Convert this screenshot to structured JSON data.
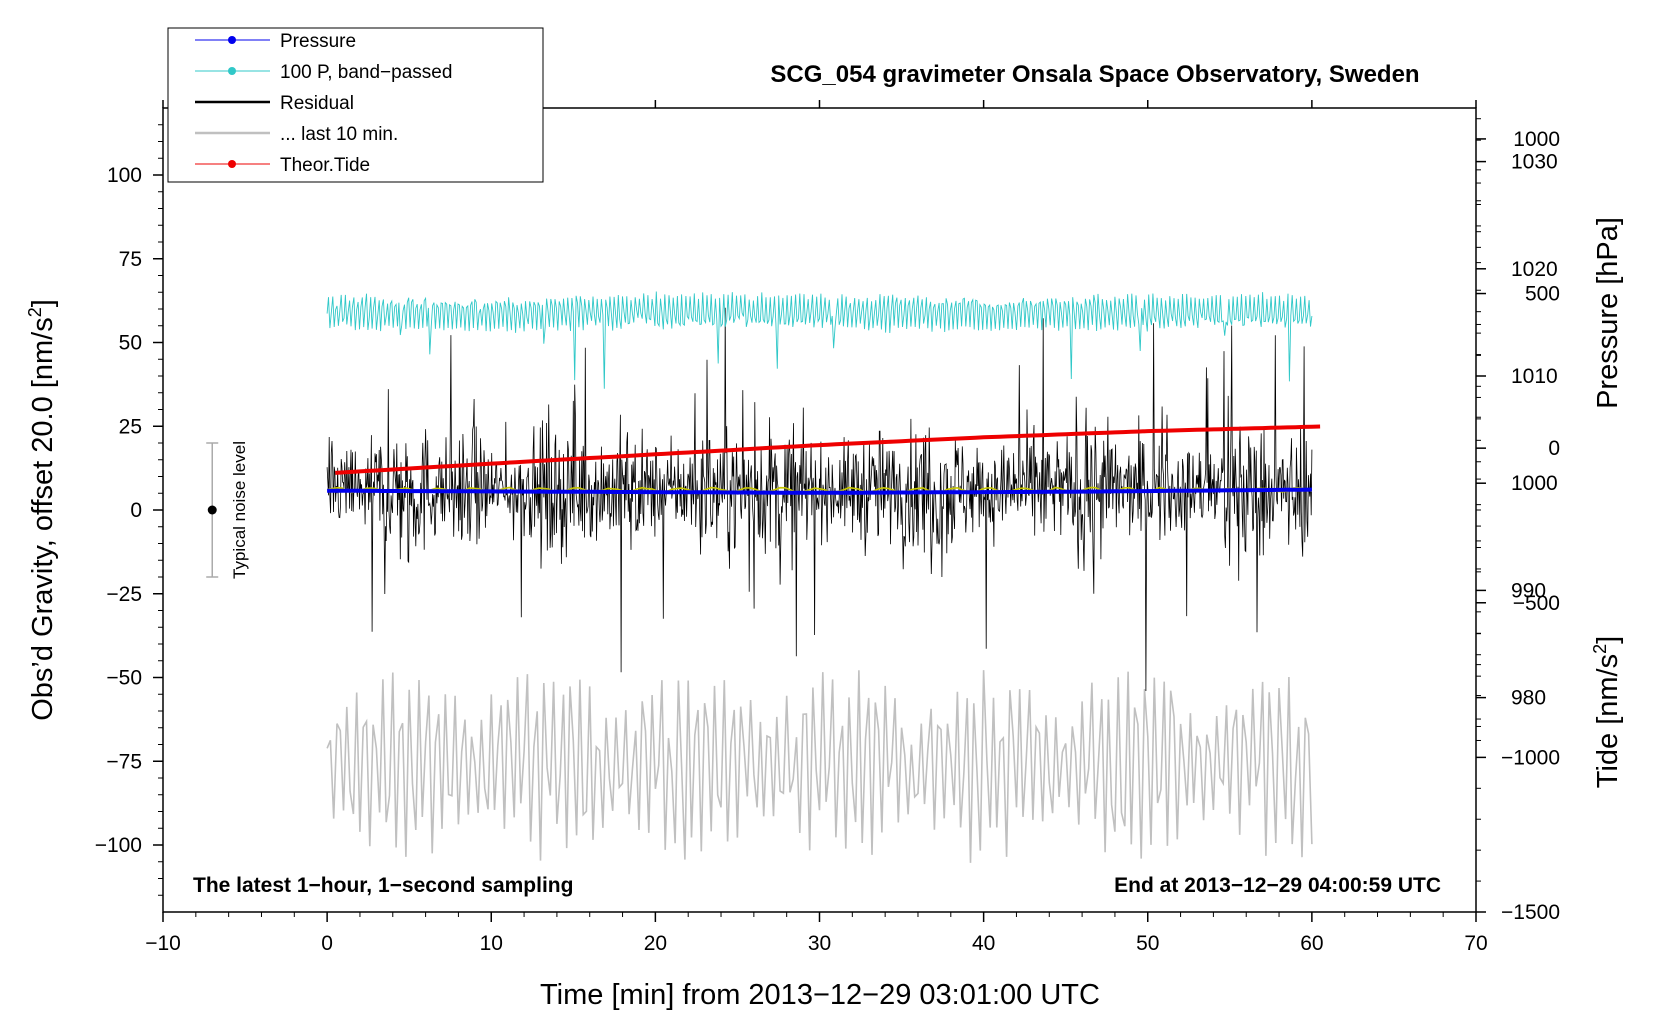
{
  "chart_data": {
    "type": "line",
    "title": "SCG_054 gravimeter Onsala Space Observatory, Sweden",
    "xlabel": "Time [min] from 2013−12−29 03:01:00 UTC",
    "ylabel": "Obs’d Gravity, offset 20.0 [nm/s",
    "ylabel_sup": "2",
    "ylabel_end": "]",
    "y2label": "Pressure [hPa]",
    "y3label": "Tide [nm/s",
    "y3label_sup": "2",
    "y3label_end": "]",
    "xlim": [
      -10,
      70
    ],
    "ylim": [
      -120,
      120
    ],
    "pressure_lim": [
      960,
      1035
    ],
    "tide_lim": [
      -1500,
      1100
    ],
    "x_ticks": [
      -10,
      0,
      10,
      20,
      30,
      40,
      50,
      60,
      70
    ],
    "x_tick_labels": [
      "−10",
      "0",
      "10",
      "20",
      "30",
      "40",
      "50",
      "60",
      "70"
    ],
    "y_ticks": [
      100,
      75,
      50,
      25,
      0,
      -25,
      -50,
      -75,
      -100
    ],
    "y_tick_labels": [
      "100",
      "75",
      "50",
      "25",
      "0",
      "−25",
      "−50",
      "−75",
      "−100"
    ],
    "pressure_ticks": [
      1030,
      1020,
      1010,
      1000,
      990,
      980
    ],
    "pressure_tick_labels": [
      "1030",
      "1020",
      "1010",
      "1000",
      "990",
      "980"
    ],
    "tide_ticks": [
      1000,
      500,
      0,
      -500,
      -1000,
      -1500
    ],
    "tide_tick_labels": [
      "1000",
      "500",
      "0",
      "−500",
      "−1000",
      "−1500"
    ],
    "series": [
      {
        "name": "Pressure",
        "color": "#0000ee",
        "axis": "pressure",
        "x": [
          0,
          15,
          30,
          45,
          60
        ],
        "values": [
          999.3,
          999.2,
          999.1,
          999.2,
          999.4
        ]
      },
      {
        "name": "100 P, band−passed",
        "color": "#30c8c8",
        "axis": "gravity",
        "baseline": 59,
        "amplitude": 5
      },
      {
        "name": "Residual",
        "color": "#000000",
        "axis": "gravity",
        "baseline": 6,
        "amplitude": 18,
        "smoothed_color": "#c8c800"
      },
      {
        "name": "... last 10 min.",
        "color": "#c0c0c0",
        "axis": "gravity",
        "baseline": -76,
        "amplitude": 28
      },
      {
        "name": "Theor.Tide",
        "color": "#ee0000",
        "axis": "tide",
        "x": [
          0.5,
          10,
          20,
          30,
          40,
          50,
          60.5
        ],
        "values": [
          -80,
          -50,
          -20,
          10,
          35,
          55,
          70
        ]
      }
    ],
    "noise_level": {
      "x": -7,
      "center": 0,
      "low": -20,
      "high": 20,
      "label": "Typical noise level"
    },
    "annotations": {
      "left": "The latest 1−hour, 1−second sampling",
      "right": "End at 2013−12−29 04:00:59 UTC"
    },
    "legend_position": "top-left"
  }
}
